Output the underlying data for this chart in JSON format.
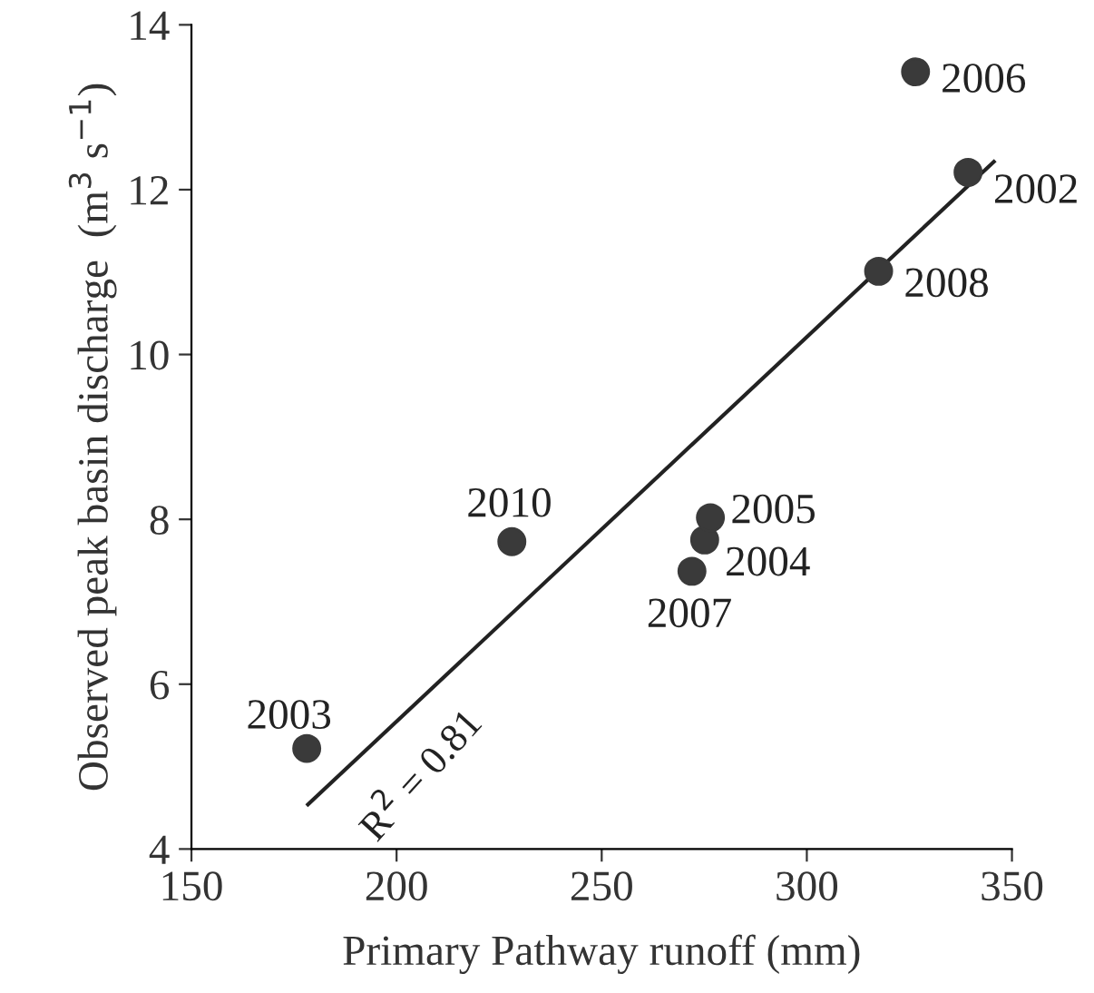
{
  "chart_data": {
    "type": "scatter",
    "xlabel": "Primary Pathway runoff (mm)",
    "ylabel": "Observed peak basin discharge  (m$^{3}$ s$^{−1}$)",
    "series": [
      {
        "color": "#3a3a3a",
        "marker": "circle",
        "x": [
          339.3,
          178.1,
          275.1,
          276.5,
          326.5,
          272.0,
          317.5,
          228.1
        ],
        "values": [
          12.21,
          5.22,
          7.75,
          8.02,
          13.43,
          7.37,
          11.01,
          7.73
        ]
      },
      {
        "type": "line",
        "color": "#222222",
        "marker": "none",
        "line_style": "solid",
        "x": [
          178.4,
          345.6
        ],
        "values": [
          4.54,
          12.34
        ]
      }
    ],
    "annotations": [
      {
        "text": "2002",
        "x": 339.3,
        "y": 12.21
      },
      {
        "text": "2003",
        "x": 178.1,
        "y": 5.22
      },
      {
        "text": "2004",
        "x": 275.1,
        "y": 7.75
      },
      {
        "text": "2005",
        "x": 276.5,
        "y": 8.02
      },
      {
        "text": "2006",
        "x": 326.5,
        "y": 13.43
      },
      {
        "text": "2007",
        "x": 272.0,
        "y": 7.37
      },
      {
        "text": "2008",
        "x": 317.5,
        "y": 11.01
      },
      {
        "text": "2010",
        "x": 228.1,
        "y": 7.73
      },
      "R$^{2}$ = 0.81"
    ],
    "xlim": [
      150,
      350
    ],
    "xticks": [
      150,
      200,
      250,
      300,
      350
    ],
    "ylim": [
      4,
      14
    ],
    "yticks": [
      4,
      6,
      8,
      10,
      12,
      14
    ]
  }
}
